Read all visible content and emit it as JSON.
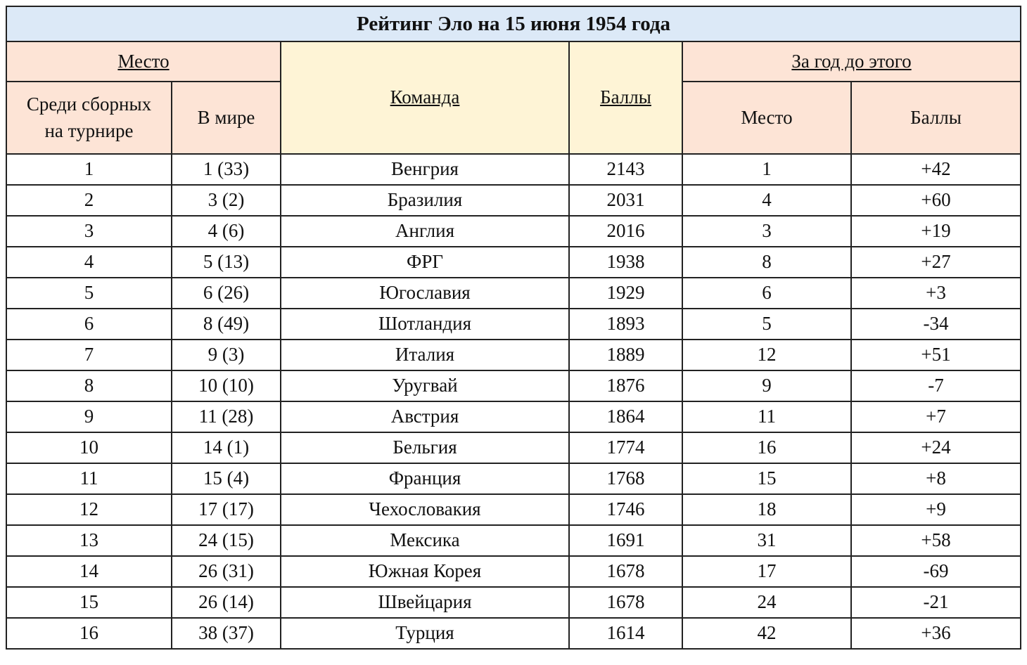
{
  "title": "Рейтинг Эло на 15 июня 1954 года",
  "headers": {
    "place_group": "Место",
    "place_tournament": "Среди сборных на турнире",
    "place_world": "В мире",
    "team": "Команда",
    "points": "Баллы",
    "prev_group": "За год до этого",
    "prev_place": "Место",
    "prev_points": "Баллы"
  },
  "rows": [
    {
      "tournament": "1",
      "world": "1 (33)",
      "team": "Венгрия",
      "bold": true,
      "points": "2143",
      "prev_place": "1",
      "change": "+42"
    },
    {
      "tournament": "2",
      "world": "3 (2)",
      "team": "Бразилия",
      "bold": true,
      "points": "2031",
      "prev_place": "4",
      "change": "+60"
    },
    {
      "tournament": "3",
      "world": "4 (6)",
      "team": "Англия",
      "bold": true,
      "points": "2016",
      "prev_place": "3",
      "change": "+19"
    },
    {
      "tournament": "4",
      "world": "5 (13)",
      "team": "ФРГ",
      "bold": false,
      "points": "1938",
      "prev_place": "8",
      "change": "+27"
    },
    {
      "tournament": "5",
      "world": "6 (26)",
      "team": "Югославия",
      "bold": false,
      "points": "1929",
      "prev_place": "6",
      "change": "+3"
    },
    {
      "tournament": "6",
      "world": "8 (49)",
      "team": "Шотландия",
      "bold": false,
      "points": "1893",
      "prev_place": "5",
      "change": "-34"
    },
    {
      "tournament": "7",
      "world": "9 (3)",
      "team": "Италия",
      "bold": true,
      "points": "1889",
      "prev_place": "12",
      "change": "+51"
    },
    {
      "tournament": "8",
      "world": "10 (10)",
      "team": "Уругвай",
      "bold": true,
      "points": "1876",
      "prev_place": "9",
      "change": "-7"
    },
    {
      "tournament": "9",
      "world": "11 (28)",
      "team": "Австрия",
      "bold": true,
      "points": "1864",
      "prev_place": "11",
      "change": "+7"
    },
    {
      "tournament": "10",
      "world": "14 (1)",
      "team": "Бельгия",
      "bold": false,
      "points": "1774",
      "prev_place": "16",
      "change": "+24"
    },
    {
      "tournament": "11",
      "world": "15 (4)",
      "team": "Франция",
      "bold": true,
      "points": "1768",
      "prev_place": "15",
      "change": "+8"
    },
    {
      "tournament": "12",
      "world": "17 (17)",
      "team": "Чехословакия",
      "bold": false,
      "points": "1746",
      "prev_place": "18",
      "change": "+9"
    },
    {
      "tournament": "13",
      "world": "24 (15)",
      "team": "Мексика",
      "bold": false,
      "points": "1691",
      "prev_place": "31",
      "change": "+58"
    },
    {
      "tournament": "14",
      "world": "26 (31)",
      "team": "Южная Корея",
      "bold": false,
      "points": "1678",
      "prev_place": "17",
      "change": "-69"
    },
    {
      "tournament": "15",
      "world": "26 (14)",
      "team": "Швейцария",
      "bold": false,
      "points": "1678",
      "prev_place": "24",
      "change": "-21"
    },
    {
      "tournament": "16",
      "world": "38 (37)",
      "team": "Турция",
      "bold": true,
      "points": "1614",
      "prev_place": "42",
      "change": "+36"
    }
  ],
  "colors": {
    "title_bg": "#dce9f7",
    "header_peach": "#fde4d6",
    "header_yellow": "#fef4d6",
    "border": "#222222"
  }
}
